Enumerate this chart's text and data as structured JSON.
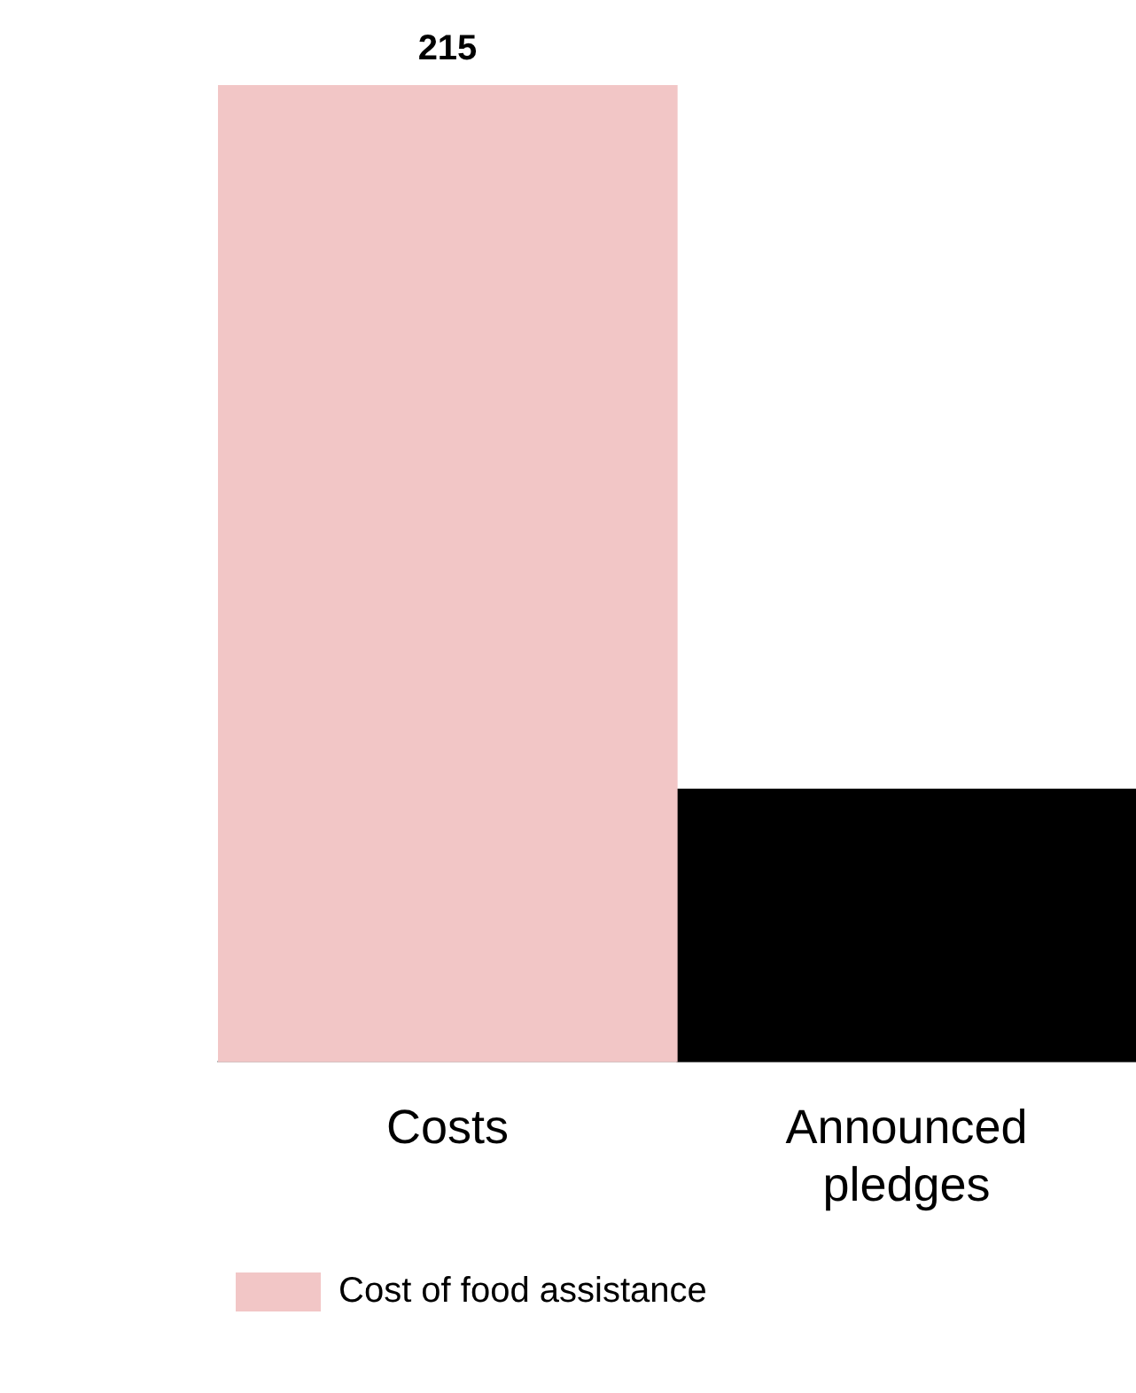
{
  "chart_data": {
    "type": "bar",
    "categories": [
      "Costs",
      "Announced pledges"
    ],
    "stacked": true,
    "series": [
      {
        "name": "Cost of food assistance",
        "color": "#f2c6c6",
        "values": [
          215,
          null
        ],
        "value_labels": [
          "215",
          null
        ]
      },
      {
        "color": "#000000",
        "values": [
          null,
          60
        ]
      }
    ],
    "grid": false,
    "legend": "bottom left"
  }
}
